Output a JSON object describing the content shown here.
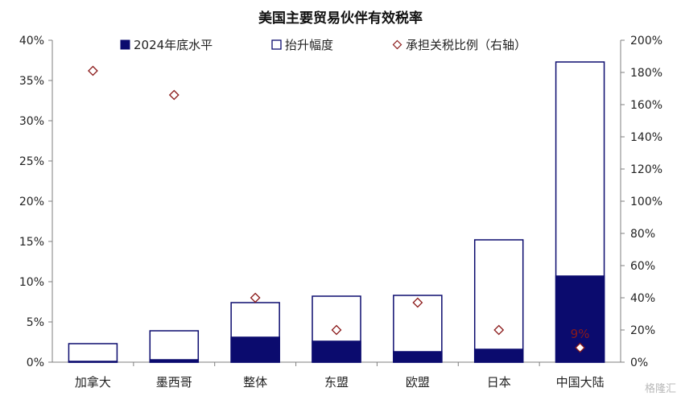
{
  "chart_data": {
    "type": "bar",
    "stacked": true,
    "title": "美国主要贸易伙伴有效税率",
    "categories": [
      "加拿大",
      "墨西哥",
      "整体",
      "东盟",
      "欧盟",
      "日本",
      "中国大陆"
    ],
    "series": [
      {
        "name": "2024年底水平",
        "style": "filled",
        "axis": "left",
        "values": [
          0.1,
          0.3,
          3.1,
          2.6,
          1.3,
          1.6,
          10.7
        ]
      },
      {
        "name": "抬升幅度",
        "style": "hollow",
        "axis": "left",
        "values": [
          2.2,
          3.6,
          4.3,
          5.6,
          7.0,
          13.6,
          26.6
        ]
      },
      {
        "name": "承担关税比例（右轴）",
        "type": "scatter",
        "marker": "diamond",
        "axis": "right",
        "values": [
          181,
          166,
          40,
          20,
          37,
          20,
          9
        ],
        "labels": [
          "181%",
          "166%",
          "40%",
          "20%",
          "37%",
          "20%",
          "9%"
        ]
      }
    ],
    "y_left": {
      "min": 0,
      "max": 40,
      "step": 5,
      "unit": "%",
      "ticks": [
        "0%",
        "5%",
        "10%",
        "15%",
        "20%",
        "25%",
        "30%",
        "35%",
        "40%"
      ]
    },
    "y_right": {
      "min": 0,
      "max": 200,
      "step": 20,
      "unit": "%",
      "ticks": [
        "0%",
        "20%",
        "40%",
        "60%",
        "80%",
        "100%",
        "120%",
        "140%",
        "160%",
        "180%",
        "200%"
      ]
    },
    "legend": {
      "placement": "top"
    },
    "grid": false,
    "colors": {
      "filled": "#0b0b6e",
      "outline": "#0b0b6e",
      "marker": "#8b1a1a",
      "label": "#8b1a1a",
      "label_inside": "#ffffff"
    }
  },
  "watermark": "格隆汇"
}
